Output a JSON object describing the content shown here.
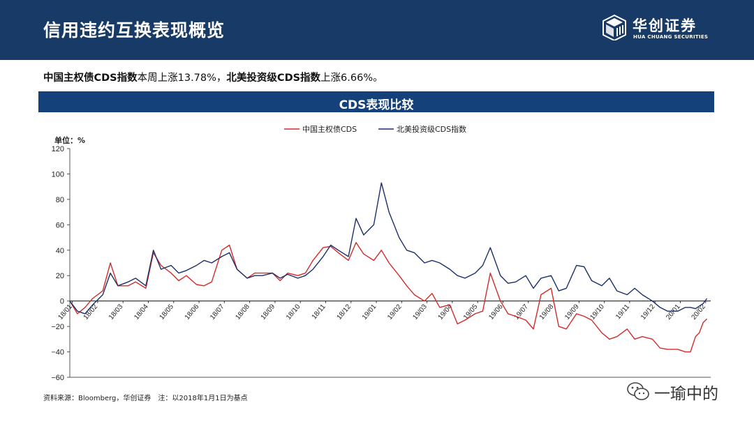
{
  "header": {
    "title": "信用违约互换表现概览",
    "logo_cn": "华创证券",
    "logo_en": "HUA CHUANG SECURITIES",
    "logo_icon": "cube-logo-icon"
  },
  "summary": {
    "part1_bold": "中国主权债CDS指数",
    "part1_text": "本周上涨13.78%，",
    "part2_bold": "北美投资级CDS指数",
    "part2_text": "上涨6.66%。"
  },
  "banner": {
    "title": "CDS表现比较"
  },
  "footnote": "资料来源：Bloomberg，华创证券　注：以2018年1月1日为基点",
  "watermark": {
    "text": "一瑜中的",
    "icon": "wechat-icon"
  },
  "colors": {
    "header_bg": "#173a66",
    "banner_bg": "#14417a",
    "china_series": "#d42a2a",
    "na_series": "#1b2f6a"
  },
  "chart_data": {
    "type": "line",
    "unit_label": "单位：%",
    "ylim": [
      -60,
      120
    ],
    "yticks": [
      -60,
      -40,
      -20,
      0,
      20,
      40,
      60,
      80,
      100,
      120
    ],
    "x_categories": [
      "18/01",
      "18/02",
      "18/03",
      "18/04",
      "18/05",
      "18/06",
      "18/07",
      "18/08",
      "18/09",
      "18/10",
      "18/11",
      "18/12",
      "19/01",
      "19/02",
      "19/03",
      "19/04",
      "19/05",
      "19/06",
      "19/07",
      "19/08",
      "19/09",
      "19/10",
      "19/11",
      "19/12",
      "20/01",
      "20/02"
    ],
    "legend_position": "top-center",
    "grid": false,
    "series": [
      {
        "name": "中国主权债CDS",
        "color": "#d42a2a",
        "x": [
          0,
          0.3,
          0.6,
          0.9,
          1.3,
          1.6,
          1.9,
          2.3,
          2.6,
          3.0,
          3.3,
          3.6,
          4.0,
          4.3,
          4.6,
          5.0,
          5.3,
          5.6,
          6.0,
          6.3,
          6.6,
          7.0,
          7.3,
          7.6,
          8.0,
          8.3,
          8.6,
          9.0,
          9.3,
          9.6,
          10.0,
          10.3,
          10.6,
          11.0,
          11.3,
          11.6,
          12.0,
          12.3,
          12.6,
          13.0,
          13.3,
          13.6,
          14.0,
          14.3,
          14.6,
          15.0,
          15.3,
          15.6,
          16.0,
          16.3,
          16.6,
          17.0,
          17.3,
          17.6,
          18.0,
          18.3,
          18.6,
          19.0,
          19.3,
          19.6,
          20.0,
          20.3,
          20.6,
          21.0,
          21.3,
          21.6,
          22.0,
          22.3,
          22.6,
          23.0,
          23.3,
          23.6,
          24.0,
          24.3,
          24.5,
          24.7,
          24.85,
          25.0,
          25.15
        ],
        "values": [
          0,
          -10,
          -5,
          2,
          8,
          30,
          12,
          12,
          15,
          10,
          38,
          28,
          22,
          16,
          20,
          13,
          12,
          15,
          40,
          44,
          25,
          18,
          22,
          22,
          22,
          16,
          22,
          20,
          22,
          32,
          42,
          43,
          38,
          32,
          46,
          37,
          32,
          40,
          30,
          20,
          12,
          5,
          0,
          6,
          -5,
          -3,
          -18,
          -15,
          -10,
          -8,
          22,
          0,
          -10,
          -12,
          -15,
          -22,
          5,
          10,
          -20,
          -22,
          -10,
          -12,
          -15,
          -25,
          -30,
          -28,
          -22,
          -30,
          -28,
          -30,
          -37,
          -38,
          -38,
          -40,
          -40,
          -28,
          -25,
          -17,
          -14
        ]
      },
      {
        "name": "北美投资级CDS指数",
        "color": "#1b2f6a",
        "x": [
          0,
          0.3,
          0.6,
          0.9,
          1.3,
          1.6,
          1.9,
          2.3,
          2.6,
          3.0,
          3.3,
          3.6,
          4.0,
          4.3,
          4.6,
          5.0,
          5.3,
          5.6,
          6.0,
          6.3,
          6.6,
          7.0,
          7.3,
          7.6,
          8.0,
          8.3,
          8.6,
          9.0,
          9.3,
          9.6,
          10.0,
          10.3,
          10.6,
          11.0,
          11.3,
          11.6,
          12.0,
          12.3,
          12.6,
          13.0,
          13.3,
          13.6,
          14.0,
          14.3,
          14.6,
          15.0,
          15.3,
          15.6,
          16.0,
          16.3,
          16.6,
          17.0,
          17.3,
          17.6,
          18.0,
          18.3,
          18.6,
          19.0,
          19.3,
          19.6,
          20.0,
          20.3,
          20.6,
          21.0,
          21.3,
          21.6,
          22.0,
          22.3,
          22.6,
          23.0,
          23.3,
          23.6,
          24.0,
          24.3,
          24.5,
          24.7,
          24.85,
          25.0,
          25.15
        ],
        "values": [
          0,
          -8,
          -10,
          -3,
          5,
          22,
          12,
          15,
          18,
          12,
          40,
          25,
          28,
          22,
          24,
          28,
          32,
          30,
          35,
          38,
          25,
          18,
          20,
          20,
          22,
          18,
          21,
          18,
          20,
          25,
          35,
          44,
          40,
          35,
          65,
          52,
          60,
          93,
          70,
          50,
          40,
          38,
          30,
          32,
          30,
          25,
          20,
          18,
          22,
          28,
          42,
          20,
          14,
          15,
          20,
          10,
          18,
          20,
          8,
          10,
          28,
          27,
          16,
          12,
          18,
          8,
          5,
          10,
          5,
          0,
          -5,
          -8,
          -8,
          -5,
          -5,
          -6,
          -4,
          -2,
          2
        ]
      }
    ]
  }
}
